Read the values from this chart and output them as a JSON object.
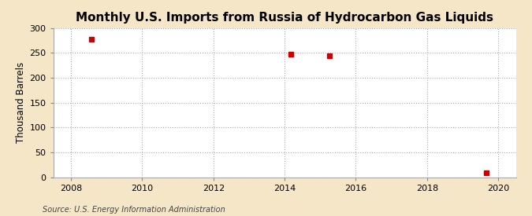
{
  "title": "Monthly U.S. Imports from Russia of Hydrocarbon Gas Liquids",
  "ylabel": "Thousand Barrels",
  "source": "Source: U.S. Energy Information Administration",
  "figure_bg_color": "#f5e6c8",
  "plot_bg_color": "#ffffff",
  "data_x": [
    2008.58,
    2014.17,
    2015.25,
    2019.67
  ],
  "data_y": [
    277,
    248,
    245,
    8
  ],
  "marker_color": "#cc0000",
  "marker_size": 4,
  "xlim": [
    2007.5,
    2020.5
  ],
  "ylim": [
    0,
    300
  ],
  "xticks": [
    2008,
    2010,
    2012,
    2014,
    2016,
    2018,
    2020
  ],
  "yticks": [
    0,
    50,
    100,
    150,
    200,
    250,
    300
  ],
  "grid_color": "#aaaaaa",
  "grid_style": ":",
  "title_fontsize": 11,
  "label_fontsize": 8.5,
  "tick_fontsize": 8,
  "source_fontsize": 7
}
